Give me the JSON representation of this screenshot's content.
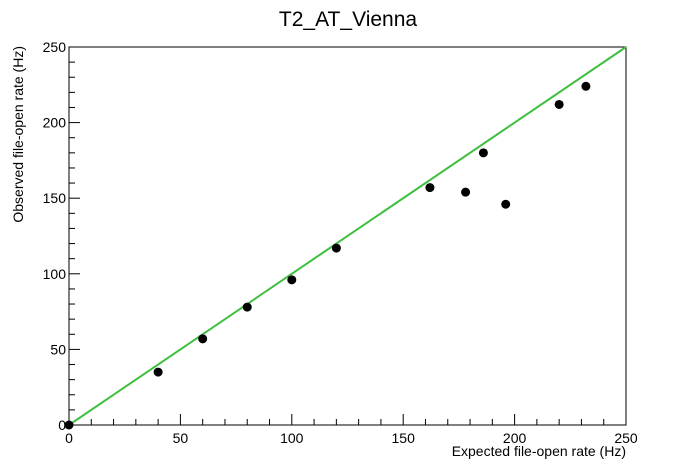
{
  "chart_data": {
    "type": "scatter",
    "title": "T2_AT_Vienna",
    "xlabel": "Expected file-open rate (Hz)",
    "ylabel": "Observed file-open rate (Hz)",
    "xlim": [
      0,
      250
    ],
    "ylim": [
      0,
      250
    ],
    "x_ticks": [
      0,
      50,
      100,
      150,
      200,
      250
    ],
    "y_ticks": [
      0,
      50,
      100,
      150,
      200,
      250
    ],
    "grid": false,
    "series": [
      {
        "color": "#000000",
        "points": [
          {
            "x": 0,
            "y": 0
          },
          {
            "x": 40,
            "y": 35
          },
          {
            "x": 60,
            "y": 57
          },
          {
            "x": 80,
            "y": 78
          },
          {
            "x": 100,
            "y": 96
          },
          {
            "x": 120,
            "y": 117
          },
          {
            "x": 162,
            "y": 157
          },
          {
            "x": 178,
            "y": 154
          },
          {
            "x": 186,
            "y": 180
          },
          {
            "x": 196,
            "y": 146
          },
          {
            "x": 220,
            "y": 212
          },
          {
            "x": 232,
            "y": 224
          }
        ]
      }
    ],
    "reference_line": {
      "from": [
        0,
        0
      ],
      "to": [
        250,
        250
      ],
      "color": "#3fbf3f"
    }
  }
}
